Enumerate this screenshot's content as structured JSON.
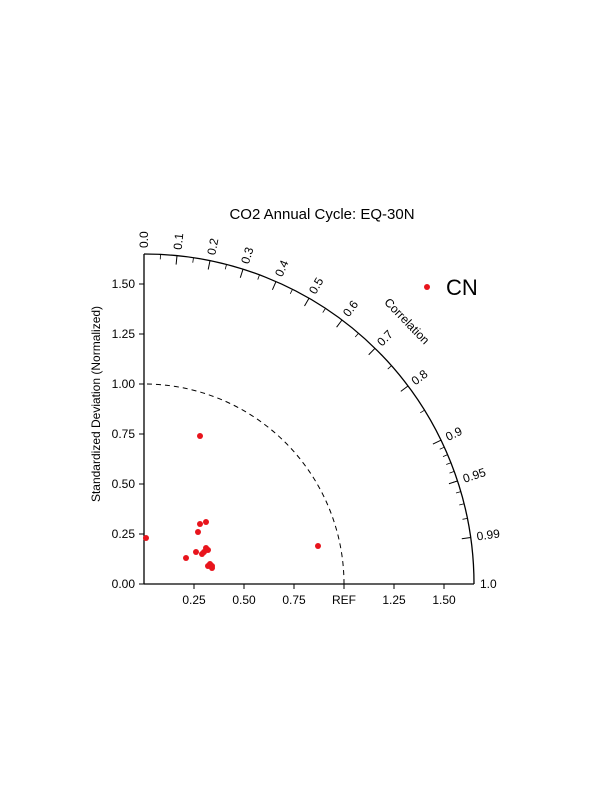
{
  "chart_data": {
    "type": "scatter",
    "subtype": "taylor-diagram",
    "title": "CO2 Annual Cycle:  EQ-30N",
    "ylabel": "Standardized Deviation (Normalized)",
    "correlation_label": "Correlation",
    "ref_label": "REF",
    "std_range": [
      0,
      1.65
    ],
    "y_ticks": [
      "0.00",
      "0.25",
      "0.50",
      "0.75",
      "1.00",
      "1.25",
      "1.50"
    ],
    "x_ticks": [
      "0.25",
      "0.50",
      "0.75",
      "1.25",
      "1.50"
    ],
    "correlation_ticks": [
      {
        "value": 0.0,
        "label": "0.0"
      },
      {
        "value": 0.1,
        "label": "0.1"
      },
      {
        "value": 0.2,
        "label": "0.2"
      },
      {
        "value": 0.3,
        "label": "0.3"
      },
      {
        "value": 0.4,
        "label": "0.4"
      },
      {
        "value": 0.5,
        "label": "0.5"
      },
      {
        "value": 0.6,
        "label": "0.6"
      },
      {
        "value": 0.7,
        "label": "0.7"
      },
      {
        "value": 0.8,
        "label": "0.8"
      },
      {
        "value": 0.9,
        "label": "0.9"
      },
      {
        "value": 0.95,
        "label": "0.95"
      },
      {
        "value": 0.99,
        "label": "0.99"
      },
      {
        "value": 1.0,
        "label": "1.0"
      }
    ],
    "reference_std": 1.0,
    "legend": {
      "position": "top-right"
    },
    "series": [
      {
        "name": "CN",
        "color": "#e8141c",
        "points": [
          {
            "x": 0.01,
            "y": 0.23
          },
          {
            "x": 0.28,
            "y": 0.74
          },
          {
            "x": 0.87,
            "y": 0.19
          },
          {
            "x": 0.31,
            "y": 0.31
          },
          {
            "x": 0.28,
            "y": 0.3
          },
          {
            "x": 0.27,
            "y": 0.26
          },
          {
            "x": 0.31,
            "y": 0.18
          },
          {
            "x": 0.3,
            "y": 0.16
          },
          {
            "x": 0.32,
            "y": 0.17
          },
          {
            "x": 0.26,
            "y": 0.16
          },
          {
            "x": 0.29,
            "y": 0.15
          },
          {
            "x": 0.21,
            "y": 0.13
          },
          {
            "x": 0.33,
            "y": 0.1
          },
          {
            "x": 0.32,
            "y": 0.09
          },
          {
            "x": 0.34,
            "y": 0.08
          },
          {
            "x": 0.34,
            "y": 0.09
          }
        ]
      }
    ]
  }
}
